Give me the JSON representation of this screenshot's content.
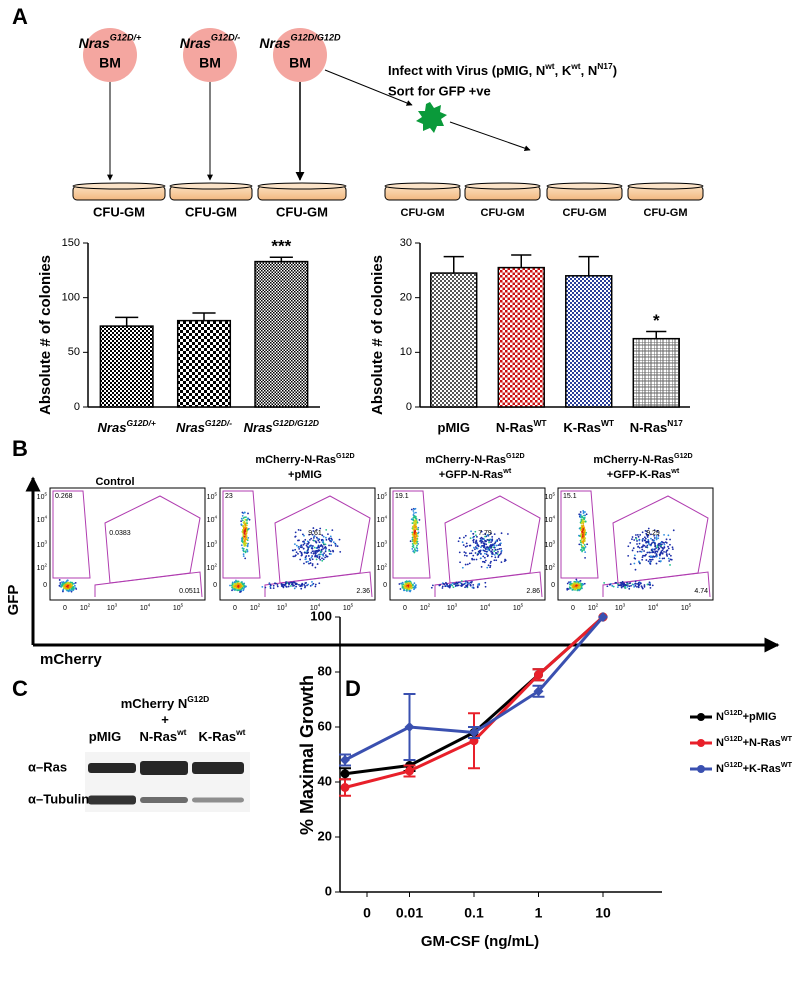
{
  "panel_labels": [
    "A",
    "B",
    "C",
    "D"
  ],
  "panel_a": {
    "bm_labels": [
      [
        "Nras",
        "G12D/+"
      ],
      [
        "Nras",
        "G12D/-"
      ],
      [
        "Nras",
        "G12D/G12D"
      ]
    ],
    "bm": "BM",
    "dish_label": "CFU-GM",
    "infect": [
      "Infect with Virus (pMIG, N",
      "wt",
      ", K",
      "wt",
      ", N",
      "N17",
      ")"
    ],
    "sort": "Sort for GFP +ve"
  },
  "panel_b": {
    "ylabel": "GFP",
    "xlabel": "mCherry",
    "yticks": [
      [
        "10",
        "5"
      ],
      [
        "10",
        "4"
      ],
      [
        "10",
        "3"
      ],
      [
        "10",
        "2"
      ],
      [
        "0"
      ]
    ],
    "xticks": [
      [
        "0"
      ],
      [
        "10",
        "2"
      ],
      [
        "10",
        "3"
      ],
      [
        "10",
        "4"
      ],
      [
        "10",
        "5"
      ]
    ],
    "plots": [
      {
        "title": [
          [
            "Control"
          ]
        ],
        "gates": [
          0.268,
          0.0383,
          0.0511
        ]
      },
      {
        "title": [
          [
            "mCherry-N-Ras",
            "G12D"
          ],
          [
            "+pMIG"
          ]
        ],
        "gates": [
          23,
          9.61,
          2.36
        ]
      },
      {
        "title": [
          [
            "mCherry-N-Ras",
            "G12D"
          ],
          [
            "+GFP-N-Ras",
            "wt"
          ]
        ],
        "gates": [
          19.1,
          7.79,
          2.86
        ]
      },
      {
        "title": [
          [
            "mCherry-N-Ras",
            "G12D"
          ],
          [
            "+GFP-K-Ras",
            "wt"
          ]
        ],
        "gates": [
          15.1,
          9.29,
          4.74
        ]
      }
    ]
  },
  "panel_c": {
    "header": [
      [
        "mCherry N",
        "G12D"
      ],
      [
        "+"
      ]
    ],
    "lanes": [
      [
        "pMIG"
      ],
      [
        "N-Ras",
        "wt"
      ],
      [
        "K-Ras",
        "wt"
      ]
    ],
    "rows": [
      "α–Ras",
      "α–Tubulin"
    ]
  },
  "chart_data": [
    {
      "type": "bar",
      "ylabel": "Absolute # of colonies",
      "categories": [
        [
          "Nras",
          "G12D/+"
        ],
        [
          "Nras",
          "G12D/-"
        ],
        [
          "Nras",
          "G12D/G12D"
        ]
      ],
      "values": [
        74,
        79,
        133
      ],
      "errors": [
        8,
        7,
        4
      ],
      "ylim": [
        0,
        150
      ],
      "yticks": [
        0,
        50,
        100,
        150
      ],
      "colors": [
        "#000000",
        "#000000",
        "#000000"
      ],
      "annotations": [
        {
          "index": 2,
          "text": "***"
        }
      ]
    },
    {
      "type": "bar",
      "ylabel": "Absolute # of colonies",
      "categories": [
        [
          "pMIG"
        ],
        [
          "N-Ras",
          "WT"
        ],
        [
          "K-Ras",
          "WT"
        ],
        [
          "N-Ras",
          "N17"
        ]
      ],
      "values": [
        24.5,
        25.5,
        24,
        12.5
      ],
      "errors": [
        3,
        2.3,
        3.5,
        1.3
      ],
      "ylim": [
        0,
        30
      ],
      "yticks": [
        0,
        10,
        20,
        30
      ],
      "colors": [
        "#555555",
        "#cc1111",
        "#2a3f9a",
        "#666666"
      ],
      "annotations": [
        {
          "index": 3,
          "text": "*"
        }
      ]
    },
    {
      "type": "line",
      "ylabel": "% Maximal Growth",
      "xlabel": "GM-CSF (ng/mL)",
      "categories": [
        "0",
        "0.01",
        "0.1",
        "1",
        "10"
      ],
      "ylim": [
        0,
        100
      ],
      "yticks": [
        0,
        20,
        40,
        60,
        80,
        100
      ],
      "series": [
        {
          "name": [
            "N",
            "G12D",
            "+pMIG"
          ],
          "color": "#000000",
          "values": [
            43,
            46,
            58,
            79,
            100
          ],
          "errors": [
            2,
            2,
            2,
            2,
            0
          ]
        },
        {
          "name": [
            "N",
            "G12D",
            "+N-Ras",
            "WT"
          ],
          "color": "#e8202a",
          "values": [
            38,
            44,
            55,
            79,
            100
          ],
          "errors": [
            3,
            2,
            10,
            2,
            0
          ]
        },
        {
          "name": [
            "N",
            "G12D",
            "+K-Ras",
            "WT"
          ],
          "color": "#3a50b0",
          "values": [
            48,
            60,
            58,
            73,
            100
          ],
          "errors": [
            2,
            12,
            2,
            2,
            0
          ]
        }
      ]
    }
  ]
}
